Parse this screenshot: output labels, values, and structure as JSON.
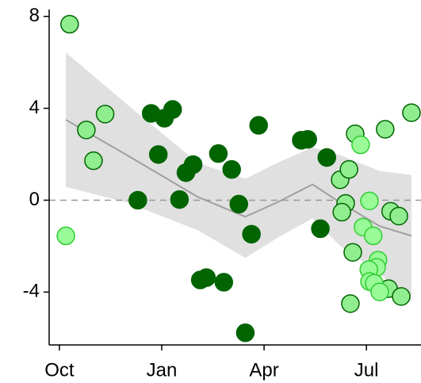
{
  "chart_data": {
    "type": "scatter",
    "xlim": [
      -0.3,
      10.6
    ],
    "ylim": [
      -6.3,
      8.3
    ],
    "xticks": [
      {
        "value": 0,
        "label": "Oct"
      },
      {
        "value": 3,
        "label": "Jan"
      },
      {
        "value": 6,
        "label": "Apr"
      },
      {
        "value": 9,
        "label": "Jul"
      }
    ],
    "yticks": [
      8,
      4,
      0,
      -4
    ],
    "reference_line": 0,
    "series": [
      {
        "color": "#90ee90",
        "edge": "#006400",
        "x": [
          0.3,
          0.79,
          1.0,
          1.34,
          8.23,
          8.49,
          8.39,
          8.28,
          8.6,
          8.53,
          8.67,
          9.55,
          10.32,
          9.71,
          9.95,
          9.65,
          10.02
        ],
        "values": [
          7.66,
          3.06,
          1.72,
          3.75,
          0.89,
          1.34,
          -0.14,
          -0.52,
          -2.27,
          -4.5,
          2.89,
          3.09,
          3.81,
          -0.48,
          -0.69,
          -3.85,
          -4.19
        ]
      },
      {
        "color": "#006400",
        "edge": "#006400",
        "x": [
          2.3,
          2.69,
          2.9,
          3.08,
          3.32,
          3.52,
          3.71,
          3.92,
          4.13,
          4.31,
          4.66,
          4.82,
          5.05,
          5.26,
          5.45,
          5.63,
          5.84,
          7.09,
          7.28,
          7.65,
          7.84
        ],
        "values": [
          0.0,
          3.78,
          1.99,
          3.57,
          3.95,
          0.03,
          1.2,
          1.55,
          -3.47,
          -3.37,
          2.03,
          -3.57,
          1.34,
          -0.17,
          -5.77,
          -1.48,
          3.26,
          2.61,
          2.65,
          -1.24,
          1.86
        ]
      },
      {
        "color": "#98fb98",
        "edge": "#32cd32",
        "x": [
          0.19,
          8.83,
          9.09,
          8.9,
          9.2,
          9.34,
          9.3,
          9.07,
          9.09,
          9.23,
          9.39
        ],
        "values": [
          -1.55,
          2.41,
          -0.03,
          -1.17,
          -1.55,
          -2.61,
          -2.92,
          -3.02,
          -3.54,
          -3.61,
          -3.99
        ]
      }
    ],
    "trend": {
      "color": "#a0a0a0",
      "band_color": "#e0e0e0",
      "x": [
        0.19,
        1.97,
        4.06,
        5.45,
        6.38,
        7.42,
        8.23,
        9.39,
        10.32
      ],
      "values": [
        3.5,
        1.97,
        0.14,
        -0.72,
        -0.1,
        0.69,
        -0.1,
        -1.13,
        -1.55
      ],
      "upper": [
        6.43,
        4.19,
        1.62,
        0.93,
        1.62,
        2.3,
        1.96,
        1.27,
        1.1
      ],
      "lower": [
        0.58,
        -0.1,
        -1.31,
        -2.51,
        -1.65,
        -0.79,
        -1.99,
        -3.2,
        -4.4
      ]
    }
  }
}
